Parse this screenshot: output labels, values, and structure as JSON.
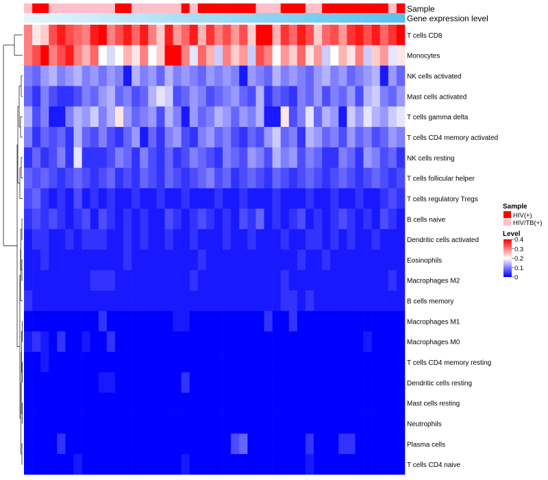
{
  "chart_data": {
    "type": "heatmap",
    "title": "",
    "annotation_labels": [
      "Sample",
      "Gene expression level"
    ],
    "n_samples": 46,
    "sample_groups": [
      "HIV/TB(+)",
      "HIV(+)",
      "HIV(+)",
      "HIV/TB(+)",
      "HIV/TB(+)",
      "HIV/TB(+)",
      "HIV/TB(+)",
      "HIV/TB(+)",
      "HIV/TB(+)",
      "HIV/TB(+)",
      "HIV/TB(+)",
      "HIV(+)",
      "HIV(+)",
      "HIV/TB(+)",
      "HIV/TB(+)",
      "HIV/TB(+)",
      "HIV/TB(+)",
      "HIV/TB(+)",
      "HIV/TB(+)",
      "HIV(+)",
      "HIV/TB(+)",
      "HIV(+)",
      "HIV(+)",
      "HIV(+)",
      "HIV(+)",
      "HIV(+)",
      "HIV(+)",
      "HIV(+)",
      "HIV/TB(+)",
      "HIV/TB(+)",
      "HIV/TB(+)",
      "HIV(+)",
      "HIV(+)",
      "HIV(+)",
      "HIV/TB(+)",
      "HIV/TB(+)",
      "HIV(+)",
      "HIV(+)",
      "HIV(+)",
      "HIV(+)",
      "HIV(+)",
      "HIV(+)",
      "HIV(+)",
      "HIV(+)",
      "HIV/TB(+)",
      "HIV(+)"
    ],
    "expression_level": "increasing gradient across samples (light to sky blue)",
    "rows": [
      "T cells CD8",
      "Monocytes",
      "NK cells activated",
      "Mast cells activated",
      "T cells gamma delta",
      "T cells CD4 memory activated",
      "NK cells resting",
      "T cells follicular helper",
      "T cells regulatory  Tregs",
      "B cells naive",
      "Dendritic cells activated",
      "Eosinophils",
      "Macrophages M2",
      "B cells memory",
      "Macrophages M1",
      "Macrophages M0",
      "T cells CD4 memory resting",
      "Dendritic cells resting",
      "Mast cells resting",
      "Neutrophils",
      "Plasma cells",
      "T cells CD4 naive"
    ],
    "values": [
      [
        0.3,
        0.22,
        0.24,
        0.34,
        0.38,
        0.34,
        0.32,
        0.3,
        0.38,
        0.4,
        0.3,
        0.34,
        0.38,
        0.32,
        0.38,
        0.3,
        0.24,
        0.38,
        0.28,
        0.32,
        0.38,
        0.26,
        0.36,
        0.3,
        0.34,
        0.28,
        0.34,
        0.24,
        0.4,
        0.4,
        0.26,
        0.36,
        0.32,
        0.38,
        0.34,
        0.24,
        0.32,
        0.34,
        0.28,
        0.36,
        0.38,
        0.34,
        0.38,
        0.32,
        0.36,
        0.4
      ],
      [
        0.3,
        0.34,
        0.4,
        0.3,
        0.34,
        0.38,
        0.3,
        0.26,
        0.32,
        0.2,
        0.17,
        0.2,
        0.26,
        0.22,
        0.3,
        0.2,
        0.24,
        0.4,
        0.4,
        0.3,
        0.18,
        0.32,
        0.26,
        0.16,
        0.3,
        0.24,
        0.28,
        0.16,
        0.34,
        0.3,
        0.2,
        0.28,
        0.24,
        0.32,
        0.22,
        0.28,
        0.16,
        0.2,
        0.26,
        0.22,
        0.3,
        0.16,
        0.24,
        0.28,
        0.18,
        0.22
      ],
      [
        0.1,
        0.08,
        0.12,
        0.14,
        0.1,
        0.12,
        0.14,
        0.1,
        0.12,
        0.09,
        0.12,
        0.1,
        0.02,
        0.14,
        0.1,
        0.12,
        0.08,
        0.14,
        0.1,
        0.12,
        0.1,
        0.08,
        0.12,
        0.1,
        0.12,
        0.1,
        0.02,
        0.12,
        0.1,
        0.08,
        0.14,
        0.1,
        0.12,
        0.1,
        0.08,
        0.12,
        0.14,
        0.1,
        0.12,
        0.08,
        0.1,
        0.12,
        0.14,
        0.02,
        0.12,
        0.08
      ],
      [
        0.08,
        0.04,
        0.1,
        0.06,
        0.04,
        0.04,
        0.06,
        0.1,
        0.08,
        0.12,
        0.14,
        0.08,
        0.1,
        0.06,
        0.08,
        0.14,
        0.18,
        0.16,
        0.06,
        0.08,
        0.12,
        0.1,
        0.06,
        0.08,
        0.1,
        0.12,
        0.08,
        0.06,
        0.14,
        0.04,
        0.08,
        0.06,
        0.04,
        0.1,
        0.08,
        0.12,
        0.06,
        0.1,
        0.08,
        0.12,
        0.06,
        0.14,
        0.16,
        0.1,
        0.08,
        0.12
      ],
      [
        0.14,
        0.06,
        0.1,
        0.02,
        0.02,
        0.1,
        0.14,
        0.12,
        0.16,
        0.1,
        0.14,
        0.22,
        0.12,
        0.08,
        0.1,
        0.12,
        0.06,
        0.14,
        0.1,
        0.02,
        0.12,
        0.08,
        0.1,
        0.14,
        0.12,
        0.08,
        0.12,
        0.1,
        0.14,
        0.02,
        0.02,
        0.22,
        0.06,
        0.1,
        0.18,
        0.08,
        0.14,
        0.12,
        0.02,
        0.16,
        0.12,
        0.18,
        0.14,
        0.12,
        0.16,
        0.18
      ],
      [
        0.1,
        0.04,
        0.08,
        0.06,
        0.08,
        0.04,
        0.14,
        0.08,
        0.06,
        0.1,
        0.06,
        0.04,
        0.08,
        0.12,
        0.02,
        0.08,
        0.04,
        0.1,
        0.12,
        0.06,
        0.04,
        0.1,
        0.12,
        0.08,
        0.1,
        0.06,
        0.04,
        0.08,
        0.06,
        0.12,
        0.16,
        0.08,
        0.1,
        0.04,
        0.14,
        0.12,
        0.08,
        0.1,
        0.06,
        0.12,
        0.08,
        0.1,
        0.06,
        0.08,
        0.12,
        0.1
      ],
      [
        0.04,
        0.08,
        0.04,
        0.06,
        0.1,
        0.04,
        0.18,
        0.04,
        0.04,
        0.04,
        0.06,
        0.1,
        0.08,
        0.04,
        0.1,
        0.06,
        0.04,
        0.08,
        0.04,
        0.06,
        0.1,
        0.08,
        0.06,
        0.04,
        0.1,
        0.08,
        0.06,
        0.12,
        0.1,
        0.06,
        0.14,
        0.1,
        0.12,
        0.06,
        0.1,
        0.08,
        0.04,
        0.04,
        0.1,
        0.08,
        0.04,
        0.12,
        0.1,
        0.06,
        0.08,
        0.04
      ],
      [
        0.08,
        0.06,
        0.08,
        0.06,
        0.04,
        0.06,
        0.08,
        0.06,
        0.04,
        0.06,
        0.08,
        0.04,
        0.06,
        0.04,
        0.08,
        0.06,
        0.04,
        0.08,
        0.06,
        0.04,
        0.06,
        0.08,
        0.1,
        0.06,
        0.08,
        0.04,
        0.06,
        0.08,
        0.06,
        0.04,
        0.08,
        0.06,
        0.04,
        0.06,
        0.08,
        0.06,
        0.04,
        0.06,
        0.08,
        0.06,
        0.04,
        0.06,
        0.08,
        0.06,
        0.04,
        0.06
      ],
      [
        0.06,
        0.08,
        0.04,
        0.02,
        0.04,
        0.02,
        0.06,
        0.02,
        0.04,
        0.02,
        0.04,
        0.02,
        0.02,
        0.04,
        0.02,
        0.02,
        0.04,
        0.02,
        0.02,
        0.04,
        0.02,
        0.02,
        0.02,
        0.04,
        0.02,
        0.02,
        0.04,
        0.02,
        0.02,
        0.02,
        0.04,
        0.02,
        0.02,
        0.02,
        0.04,
        0.02,
        0.02,
        0.04,
        0.02,
        0.02,
        0.04,
        0.02,
        0.02,
        0.04,
        0.06,
        0.04
      ],
      [
        0.04,
        0.06,
        0.04,
        0.06,
        0.04,
        0.02,
        0.04,
        0.06,
        0.02,
        0.06,
        0.04,
        0.02,
        0.04,
        0.02,
        0.04,
        0.02,
        0.02,
        0.06,
        0.04,
        0.02,
        0.04,
        0.06,
        0.04,
        0.02,
        0.04,
        0.02,
        0.06,
        0.04,
        0.08,
        0.02,
        0.04,
        0.02,
        0.04,
        0.06,
        0.02,
        0.04,
        0.02,
        0.04,
        0.06,
        0.04,
        0.02,
        0.04,
        0.02,
        0.06,
        0.04,
        0.02
      ],
      [
        0.02,
        0.04,
        0.04,
        0.02,
        0.02,
        0.04,
        0.02,
        0.04,
        0.04,
        0.04,
        0.02,
        0.02,
        0.04,
        0.02,
        0.04,
        0.02,
        0.02,
        0.04,
        0.02,
        0.02,
        0.04,
        0.02,
        0.02,
        0.02,
        0.04,
        0.02,
        0.02,
        0.04,
        0.02,
        0.02,
        0.02,
        0.04,
        0.02,
        0.02,
        0.04,
        0.04,
        0.02,
        0.04,
        0.02,
        0.04,
        0.02,
        0.02,
        0.04,
        0.02,
        0.02,
        0.02
      ],
      [
        0.02,
        0.02,
        0.04,
        0.02,
        0.02,
        0.02,
        0.02,
        0.02,
        0.02,
        0.02,
        0.02,
        0.02,
        0.04,
        0.02,
        0.02,
        0.02,
        0.02,
        0.02,
        0.02,
        0.02,
        0.02,
        0.04,
        0.02,
        0.02,
        0.02,
        0.02,
        0.02,
        0.02,
        0.02,
        0.02,
        0.02,
        0.02,
        0.02,
        0.04,
        0.02,
        0.02,
        0.04,
        0.02,
        0.02,
        0.02,
        0.02,
        0.02,
        0.02,
        0.02,
        0.02,
        0.02
      ],
      [
        0.02,
        0.02,
        0.02,
        0.02,
        0.02,
        0.02,
        0.02,
        0.02,
        0.04,
        0.04,
        0.04,
        0.02,
        0.02,
        0.02,
        0.02,
        0.02,
        0.02,
        0.02,
        0.02,
        0.02,
        0.04,
        0.02,
        0.02,
        0.02,
        0.02,
        0.02,
        0.02,
        0.02,
        0.02,
        0.02,
        0.02,
        0.04,
        0.02,
        0.02,
        0.02,
        0.02,
        0.02,
        0.02,
        0.02,
        0.02,
        0.02,
        0.02,
        0.02,
        0.02,
        0.04,
        0.02
      ],
      [
        0.04,
        0.02,
        0.02,
        0.02,
        0.02,
        0.02,
        0.02,
        0.02,
        0.02,
        0.02,
        0.02,
        0.02,
        0.02,
        0.02,
        0.02,
        0.02,
        0.02,
        0.02,
        0.02,
        0.02,
        0.02,
        0.02,
        0.02,
        0.02,
        0.02,
        0.02,
        0.02,
        0.02,
        0.02,
        0.02,
        0.02,
        0.04,
        0.04,
        0.02,
        0.04,
        0.02,
        0.02,
        0.02,
        0.02,
        0.02,
        0.02,
        0.02,
        0.02,
        0.02,
        0.02,
        0.02
      ],
      [
        0.0,
        0.0,
        0.0,
        0.0,
        0.0,
        0.0,
        0.0,
        0.0,
        0.0,
        0.04,
        0.0,
        0.0,
        0.0,
        0.0,
        0.0,
        0.0,
        0.0,
        0.0,
        0.02,
        0.02,
        0.0,
        0.0,
        0.0,
        0.0,
        0.0,
        0.0,
        0.0,
        0.0,
        0.0,
        0.04,
        0.0,
        0.0,
        0.04,
        0.0,
        0.0,
        0.0,
        0.0,
        0.0,
        0.0,
        0.0,
        0.0,
        0.0,
        0.0,
        0.0,
        0.0,
        0.0
      ],
      [
        0.02,
        0.04,
        0.02,
        0.0,
        0.04,
        0.0,
        0.0,
        0.02,
        0.0,
        0.0,
        0.04,
        0.0,
        0.0,
        0.0,
        0.0,
        0.0,
        0.0,
        0.0,
        0.0,
        0.0,
        0.0,
        0.0,
        0.0,
        0.0,
        0.0,
        0.0,
        0.0,
        0.0,
        0.0,
        0.0,
        0.0,
        0.0,
        0.0,
        0.0,
        0.0,
        0.0,
        0.0,
        0.0,
        0.0,
        0.0,
        0.0,
        0.02,
        0.0,
        0.0,
        0.0,
        0.0
      ],
      [
        0.0,
        0.0,
        0.02,
        0.0,
        0.0,
        0.0,
        0.0,
        0.0,
        0.0,
        0.0,
        0.0,
        0.0,
        0.0,
        0.0,
        0.0,
        0.0,
        0.0,
        0.0,
        0.0,
        0.0,
        0.0,
        0.0,
        0.0,
        0.0,
        0.0,
        0.0,
        0.0,
        0.0,
        0.0,
        0.0,
        0.0,
        0.0,
        0.0,
        0.0,
        0.0,
        0.0,
        0.0,
        0.0,
        0.0,
        0.0,
        0.0,
        0.0,
        0.0,
        0.0,
        0.0,
        0.0
      ],
      [
        0.0,
        0.0,
        0.0,
        0.0,
        0.0,
        0.0,
        0.0,
        0.0,
        0.0,
        0.02,
        0.02,
        0.0,
        0.0,
        0.0,
        0.0,
        0.0,
        0.0,
        0.0,
        0.0,
        0.04,
        0.0,
        0.0,
        0.0,
        0.0,
        0.0,
        0.0,
        0.0,
        0.0,
        0.0,
        0.0,
        0.0,
        0.0,
        0.0,
        0.0,
        0.0,
        0.0,
        0.0,
        0.0,
        0.0,
        0.0,
        0.0,
        0.0,
        0.0,
        0.0,
        0.0,
        0.0
      ],
      [
        0.0,
        0.0,
        0.0,
        0.0,
        0.0,
        0.0,
        0.0,
        0.0,
        0.0,
        0.0,
        0.0,
        0.0,
        0.0,
        0.0,
        0.0,
        0.0,
        0.0,
        0.0,
        0.0,
        0.0,
        0.0,
        0.0,
        0.0,
        0.0,
        0.0,
        0.0,
        0.0,
        0.0,
        0.0,
        0.0,
        0.0,
        0.0,
        0.0,
        0.0,
        0.0,
        0.0,
        0.0,
        0.0,
        0.0,
        0.0,
        0.0,
        0.0,
        0.0,
        0.0,
        0.0,
        0.0
      ],
      [
        0.0,
        0.0,
        0.0,
        0.0,
        0.0,
        0.0,
        0.0,
        0.0,
        0.0,
        0.0,
        0.0,
        0.0,
        0.0,
        0.0,
        0.0,
        0.0,
        0.0,
        0.0,
        0.0,
        0.0,
        0.0,
        0.0,
        0.0,
        0.0,
        0.0,
        0.0,
        0.0,
        0.0,
        0.0,
        0.0,
        0.0,
        0.0,
        0.0,
        0.0,
        0.0,
        0.0,
        0.0,
        0.0,
        0.0,
        0.0,
        0.0,
        0.0,
        0.0,
        0.0,
        0.0,
        0.0
      ],
      [
        0.0,
        0.0,
        0.0,
        0.0,
        0.04,
        0.0,
        0.0,
        0.0,
        0.0,
        0.0,
        0.0,
        0.0,
        0.0,
        0.0,
        0.0,
        0.0,
        0.0,
        0.0,
        0.0,
        0.0,
        0.0,
        0.0,
        0.0,
        0.0,
        0.0,
        0.06,
        0.08,
        0.0,
        0.0,
        0.0,
        0.0,
        0.0,
        0.0,
        0.0,
        0.04,
        0.0,
        0.0,
        0.0,
        0.04,
        0.04,
        0.0,
        0.0,
        0.0,
        0.0,
        0.0,
        0.0
      ],
      [
        0.0,
        0.0,
        0.0,
        0.0,
        0.0,
        0.0,
        0.02,
        0.0,
        0.0,
        0.0,
        0.0,
        0.0,
        0.0,
        0.0,
        0.0,
        0.0,
        0.0,
        0.0,
        0.0,
        0.02,
        0.0,
        0.0,
        0.0,
        0.0,
        0.0,
        0.0,
        0.0,
        0.0,
        0.0,
        0.0,
        0.0,
        0.0,
        0.0,
        0.0,
        0.02,
        0.0,
        0.0,
        0.0,
        0.0,
        0.0,
        0.0,
        0.0,
        0.0,
        0.0,
        0.0,
        0.0
      ]
    ],
    "color_scale": {
      "title": "Level",
      "min": 0,
      "max": 0.4,
      "ticks": [
        0,
        0.1,
        0.2,
        0.3,
        0.4
      ],
      "low_color": "#0000FF",
      "mid_color": "#FFFFFF",
      "high_color": "#FF0000"
    },
    "sample_legend": {
      "title": "Sample",
      "items": [
        {
          "label": "HIV(+)",
          "color": "#FF0000"
        },
        {
          "label": "HIV/TB(+)",
          "color": "#FFC0CB"
        }
      ]
    },
    "expression_colors": {
      "low": "#E6F5FC",
      "high": "#5BC0EB"
    },
    "dendrogram": "hierarchical clustering of rows (left)"
  }
}
